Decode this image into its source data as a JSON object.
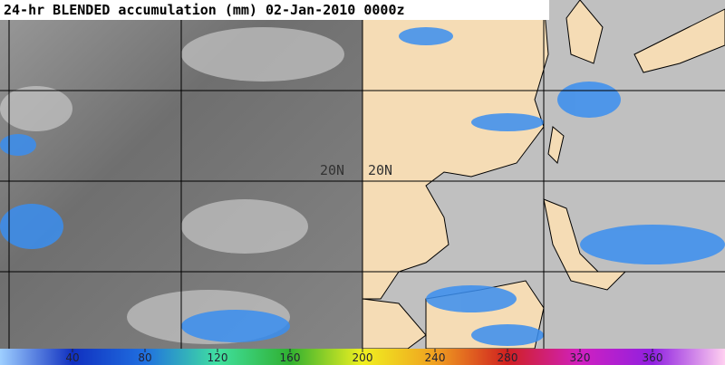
{
  "title": "24-hr BLENDED accumulation (mm) 02-Jan-2010 0000z",
  "grid_labels": [
    "20N",
    "20N"
  ],
  "colorbar": {
    "lim": [
      0,
      400
    ],
    "ticks": [
      40,
      80,
      120,
      160,
      200,
      240,
      280,
      320,
      360
    ]
  }
}
